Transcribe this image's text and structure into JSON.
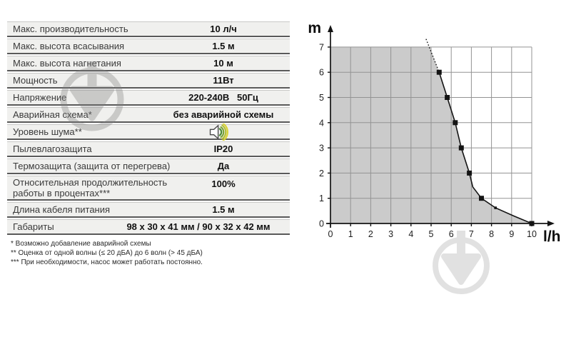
{
  "colors": {
    "row_background": "#f0f0ee",
    "row_separator": "#5a5a5a",
    "label_text": "#3a3a3a",
    "value_text": "#101010",
    "watermark_gray": "#7f7f7f"
  },
  "table": {
    "rows": [
      {
        "label": "Макс. производительность",
        "value": "10 л/ч"
      },
      {
        "label": "Макс. высота всасывания",
        "value": "1.5 м"
      },
      {
        "label": "Макс. высота нагнетания",
        "value": "10 м"
      },
      {
        "label": "Мощность",
        "value": "11Вт"
      },
      {
        "label": "Напряжение",
        "value": "220-240В   50Гц"
      },
      {
        "label": "Аварийная схема*",
        "value": "без аварийной схемы"
      },
      {
        "label": "Уровень шума**",
        "value": "",
        "icon": "noise-level-icon"
      },
      {
        "label": "Пылевлагозащита",
        "value": "IP20"
      },
      {
        "label": "Термозащита (защита от перегрева)",
        "value": "Да"
      },
      {
        "label": "Относительная продолжительность работы в процентах***",
        "value": "100%"
      },
      {
        "label": "Длина кабеля питания",
        "value": "1.5 м"
      },
      {
        "label": "Габариты",
        "value": "98 x 30 x 41 мм / 90 x 32 x 42 мм"
      }
    ],
    "footnotes": [
      "* Возможно добавление аварийной схемы",
      "** Оценка от одной волны (≤  20 дБА) до 6 волн (> 45 дБА)",
      "*** При необходимости, насос может работать постоянно."
    ]
  },
  "icons": {
    "noise_level_arc_colors": [
      "#4a8a33",
      "#7aa338",
      "#b4bd38",
      "#d9d335"
    ],
    "watermark": "down-arrow-in-circle"
  },
  "chart_data": {
    "type": "area",
    "title": "",
    "x_axis_title": "l/h",
    "y_axis_title": "m",
    "xlim": [
      0,
      10
    ],
    "ylim": [
      0,
      7
    ],
    "grid": true,
    "x_ticks": [
      0,
      1,
      2,
      3,
      4,
      5,
      6,
      7,
      8,
      9,
      10
    ],
    "y_ticks": [
      0,
      1,
      2,
      3,
      4,
      5,
      6,
      7
    ],
    "markers": [
      [
        5.4,
        6
      ],
      [
        5.8,
        5
      ],
      [
        6.2,
        4
      ],
      [
        6.5,
        3
      ],
      [
        6.9,
        2
      ],
      [
        7.5,
        1
      ],
      [
        10,
        0
      ]
    ],
    "small_markers": [
      [
        8.2,
        0.62
      ]
    ],
    "curve_solid": [
      [
        5.4,
        6
      ],
      [
        5.8,
        5
      ],
      [
        6.2,
        4
      ],
      [
        6.5,
        3
      ],
      [
        6.9,
        2
      ],
      [
        7.07,
        1.45
      ],
      [
        7.5,
        1
      ],
      [
        8.2,
        0.62
      ],
      [
        9.1,
        0.3
      ],
      [
        10,
        0
      ]
    ],
    "curve_dashed": [
      [
        4.75,
        7.32
      ],
      [
        5.4,
        6
      ]
    ],
    "area_polygon": [
      [
        0,
        0
      ],
      [
        0,
        7
      ],
      [
        4.94,
        7
      ],
      [
        5.4,
        6
      ],
      [
        5.8,
        5
      ],
      [
        6.2,
        4
      ],
      [
        6.5,
        3
      ],
      [
        6.9,
        2
      ],
      [
        7.07,
        1.45
      ],
      [
        7.5,
        1
      ],
      [
        8.2,
        0.62
      ],
      [
        9.1,
        0.3
      ],
      [
        10,
        0
      ]
    ],
    "colors": {
      "fill": "#cbcbcb",
      "grid": "#939393",
      "curve": "#141414",
      "axis": "#141414"
    }
  }
}
